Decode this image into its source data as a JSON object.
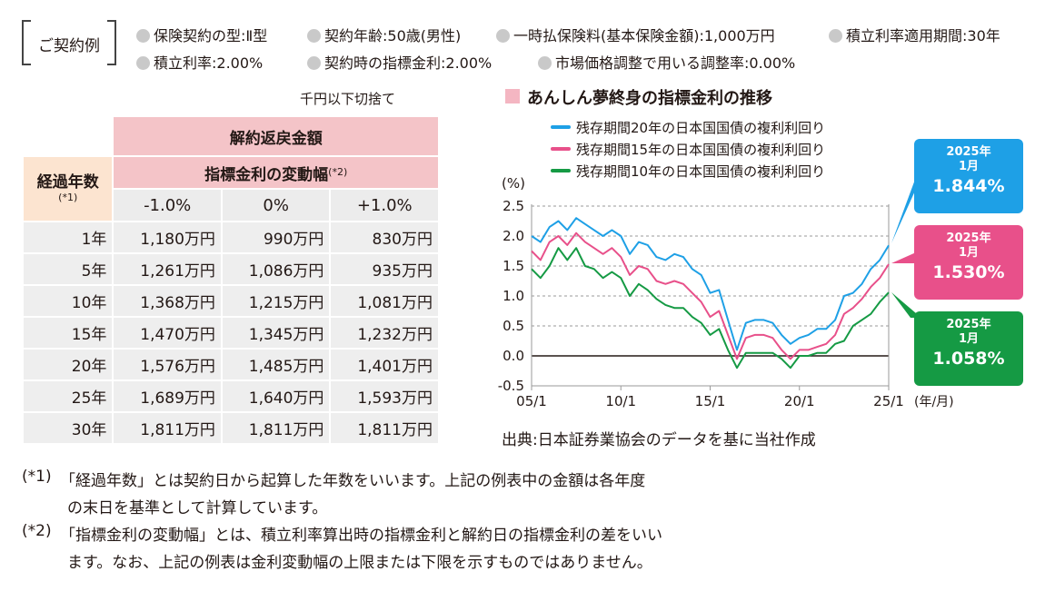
{
  "example": {
    "label": "ご契約例",
    "items": [
      "保険契約の型:Ⅱ型",
      "契約年齢:50歳(男性)",
      "一時払保険料(基本保険金額):1,000万円",
      "積立利率適用期間:30年",
      "積立利率:2.00%",
      "契約時の指標金利:2.00%",
      "市場価格調整で用いる調整率:0.00%"
    ]
  },
  "table": {
    "note": "千円以下切捨て",
    "header_main": "解約返戻金額",
    "header_sub": "指標金利の変動幅",
    "header_sub_mark": "(*2)",
    "header_year": "経過年数",
    "header_year_mark": "(*1)",
    "columns": [
      "-1.0%",
      "0%",
      "+1.0%"
    ],
    "rows": [
      {
        "year": "1年",
        "values": [
          "1,180万円",
          "990万円",
          "830万円"
        ]
      },
      {
        "year": "5年",
        "values": [
          "1,261万円",
          "1,086万円",
          "935万円"
        ]
      },
      {
        "year": "10年",
        "values": [
          "1,368万円",
          "1,215万円",
          "1,081万円"
        ]
      },
      {
        "year": "15年",
        "values": [
          "1,470万円",
          "1,345万円",
          "1,232万円"
        ]
      },
      {
        "year": "20年",
        "values": [
          "1,576万円",
          "1,485万円",
          "1,401万円"
        ]
      },
      {
        "year": "25年",
        "values": [
          "1,689万円",
          "1,640万円",
          "1,593万円"
        ]
      },
      {
        "year": "30年",
        "values": [
          "1,811万円",
          "1,811万円",
          "1,811万円"
        ]
      }
    ]
  },
  "chart": {
    "title": "あんしん夢終身の指標金利の推移",
    "source": "出典:日本証券業協会のデータを基に当社作成",
    "callouts": [
      {
        "line1": "2025年",
        "line2": "1月",
        "value": "1.844%",
        "color": "#1ea0e6"
      },
      {
        "line1": "2025年",
        "line2": "1月",
        "value": "1.530%",
        "color": "#e8508a"
      },
      {
        "line1": "2025年",
        "line2": "1月",
        "value": "1.058%",
        "color": "#159a44"
      }
    ]
  },
  "chart_data": {
    "type": "line",
    "title": "あんしん夢終身の指標金利の推移",
    "ylabel": "(%)",
    "xlabel": "(年/月)",
    "ylim": [
      -0.5,
      2.5
    ],
    "yticks": [
      "2.5",
      "2.0",
      "1.5",
      "1.0",
      "0.5",
      "0.0",
      "-0.5"
    ],
    "xticks": [
      "05/1",
      "10/1",
      "15/1",
      "20/1",
      "25/1"
    ],
    "grid": true,
    "legend": "top-left",
    "x": [
      2005.0,
      2005.5,
      2006.0,
      2006.5,
      2007.0,
      2007.5,
      2008.0,
      2008.5,
      2009.0,
      2009.5,
      2010.0,
      2010.5,
      2011.0,
      2011.5,
      2012.0,
      2012.5,
      2013.0,
      2013.5,
      2014.0,
      2014.5,
      2015.0,
      2015.5,
      2016.0,
      2016.5,
      2017.0,
      2017.5,
      2018.0,
      2018.5,
      2019.0,
      2019.5,
      2020.0,
      2020.5,
      2021.0,
      2021.5,
      2022.0,
      2022.5,
      2023.0,
      2023.5,
      2024.0,
      2024.5,
      2025.0
    ],
    "series": [
      {
        "name": "残存期間20年の日本国国債の複利利回り",
        "color": "#1ea0e6",
        "values": [
          2.0,
          1.9,
          2.15,
          2.25,
          2.1,
          2.3,
          2.2,
          2.1,
          2.0,
          2.1,
          2.0,
          1.7,
          1.9,
          1.85,
          1.65,
          1.6,
          1.7,
          1.65,
          1.45,
          1.35,
          1.05,
          1.1,
          0.6,
          0.1,
          0.55,
          0.6,
          0.6,
          0.55,
          0.35,
          0.2,
          0.3,
          0.35,
          0.45,
          0.45,
          0.6,
          1.0,
          1.05,
          1.2,
          1.45,
          1.6,
          1.844
        ]
      },
      {
        "name": "残存期間15年の日本国国債の複利利回り",
        "color": "#e8508a",
        "values": [
          1.75,
          1.6,
          1.9,
          2.0,
          1.85,
          2.05,
          1.9,
          1.8,
          1.7,
          1.8,
          1.65,
          1.35,
          1.5,
          1.45,
          1.25,
          1.2,
          1.25,
          1.2,
          1.05,
          0.9,
          0.65,
          0.75,
          0.35,
          -0.05,
          0.3,
          0.35,
          0.35,
          0.3,
          0.1,
          -0.05,
          0.1,
          0.1,
          0.15,
          0.2,
          0.35,
          0.7,
          0.8,
          0.95,
          1.15,
          1.3,
          1.53
        ]
      },
      {
        "name": "残存期間10年の日本国国債の複利利回り",
        "color": "#159a44",
        "values": [
          1.45,
          1.3,
          1.5,
          1.8,
          1.6,
          1.8,
          1.5,
          1.45,
          1.3,
          1.4,
          1.3,
          1.0,
          1.2,
          1.1,
          0.95,
          0.85,
          0.8,
          0.8,
          0.65,
          0.55,
          0.35,
          0.45,
          0.1,
          -0.2,
          0.05,
          0.05,
          0.05,
          0.05,
          -0.05,
          -0.2,
          0.0,
          0.0,
          0.05,
          0.05,
          0.2,
          0.25,
          0.5,
          0.6,
          0.7,
          0.9,
          1.058
        ]
      }
    ]
  },
  "footnotes": [
    {
      "mark": "(*1)",
      "lines": [
        "「経過年数」とは契約日から起算した年数をいいます。上記の例表中の金額は各年度",
        "の末日を基準として計算しています。"
      ]
    },
    {
      "mark": "(*2)",
      "lines": [
        "「指標金利の変動幅」とは、積立利率算出時の指標金利と解約日の指標金利の差をいい",
        "ます。なお、上記の例表は金利変動幅の上限または下限を示すものではありません。"
      ]
    }
  ]
}
